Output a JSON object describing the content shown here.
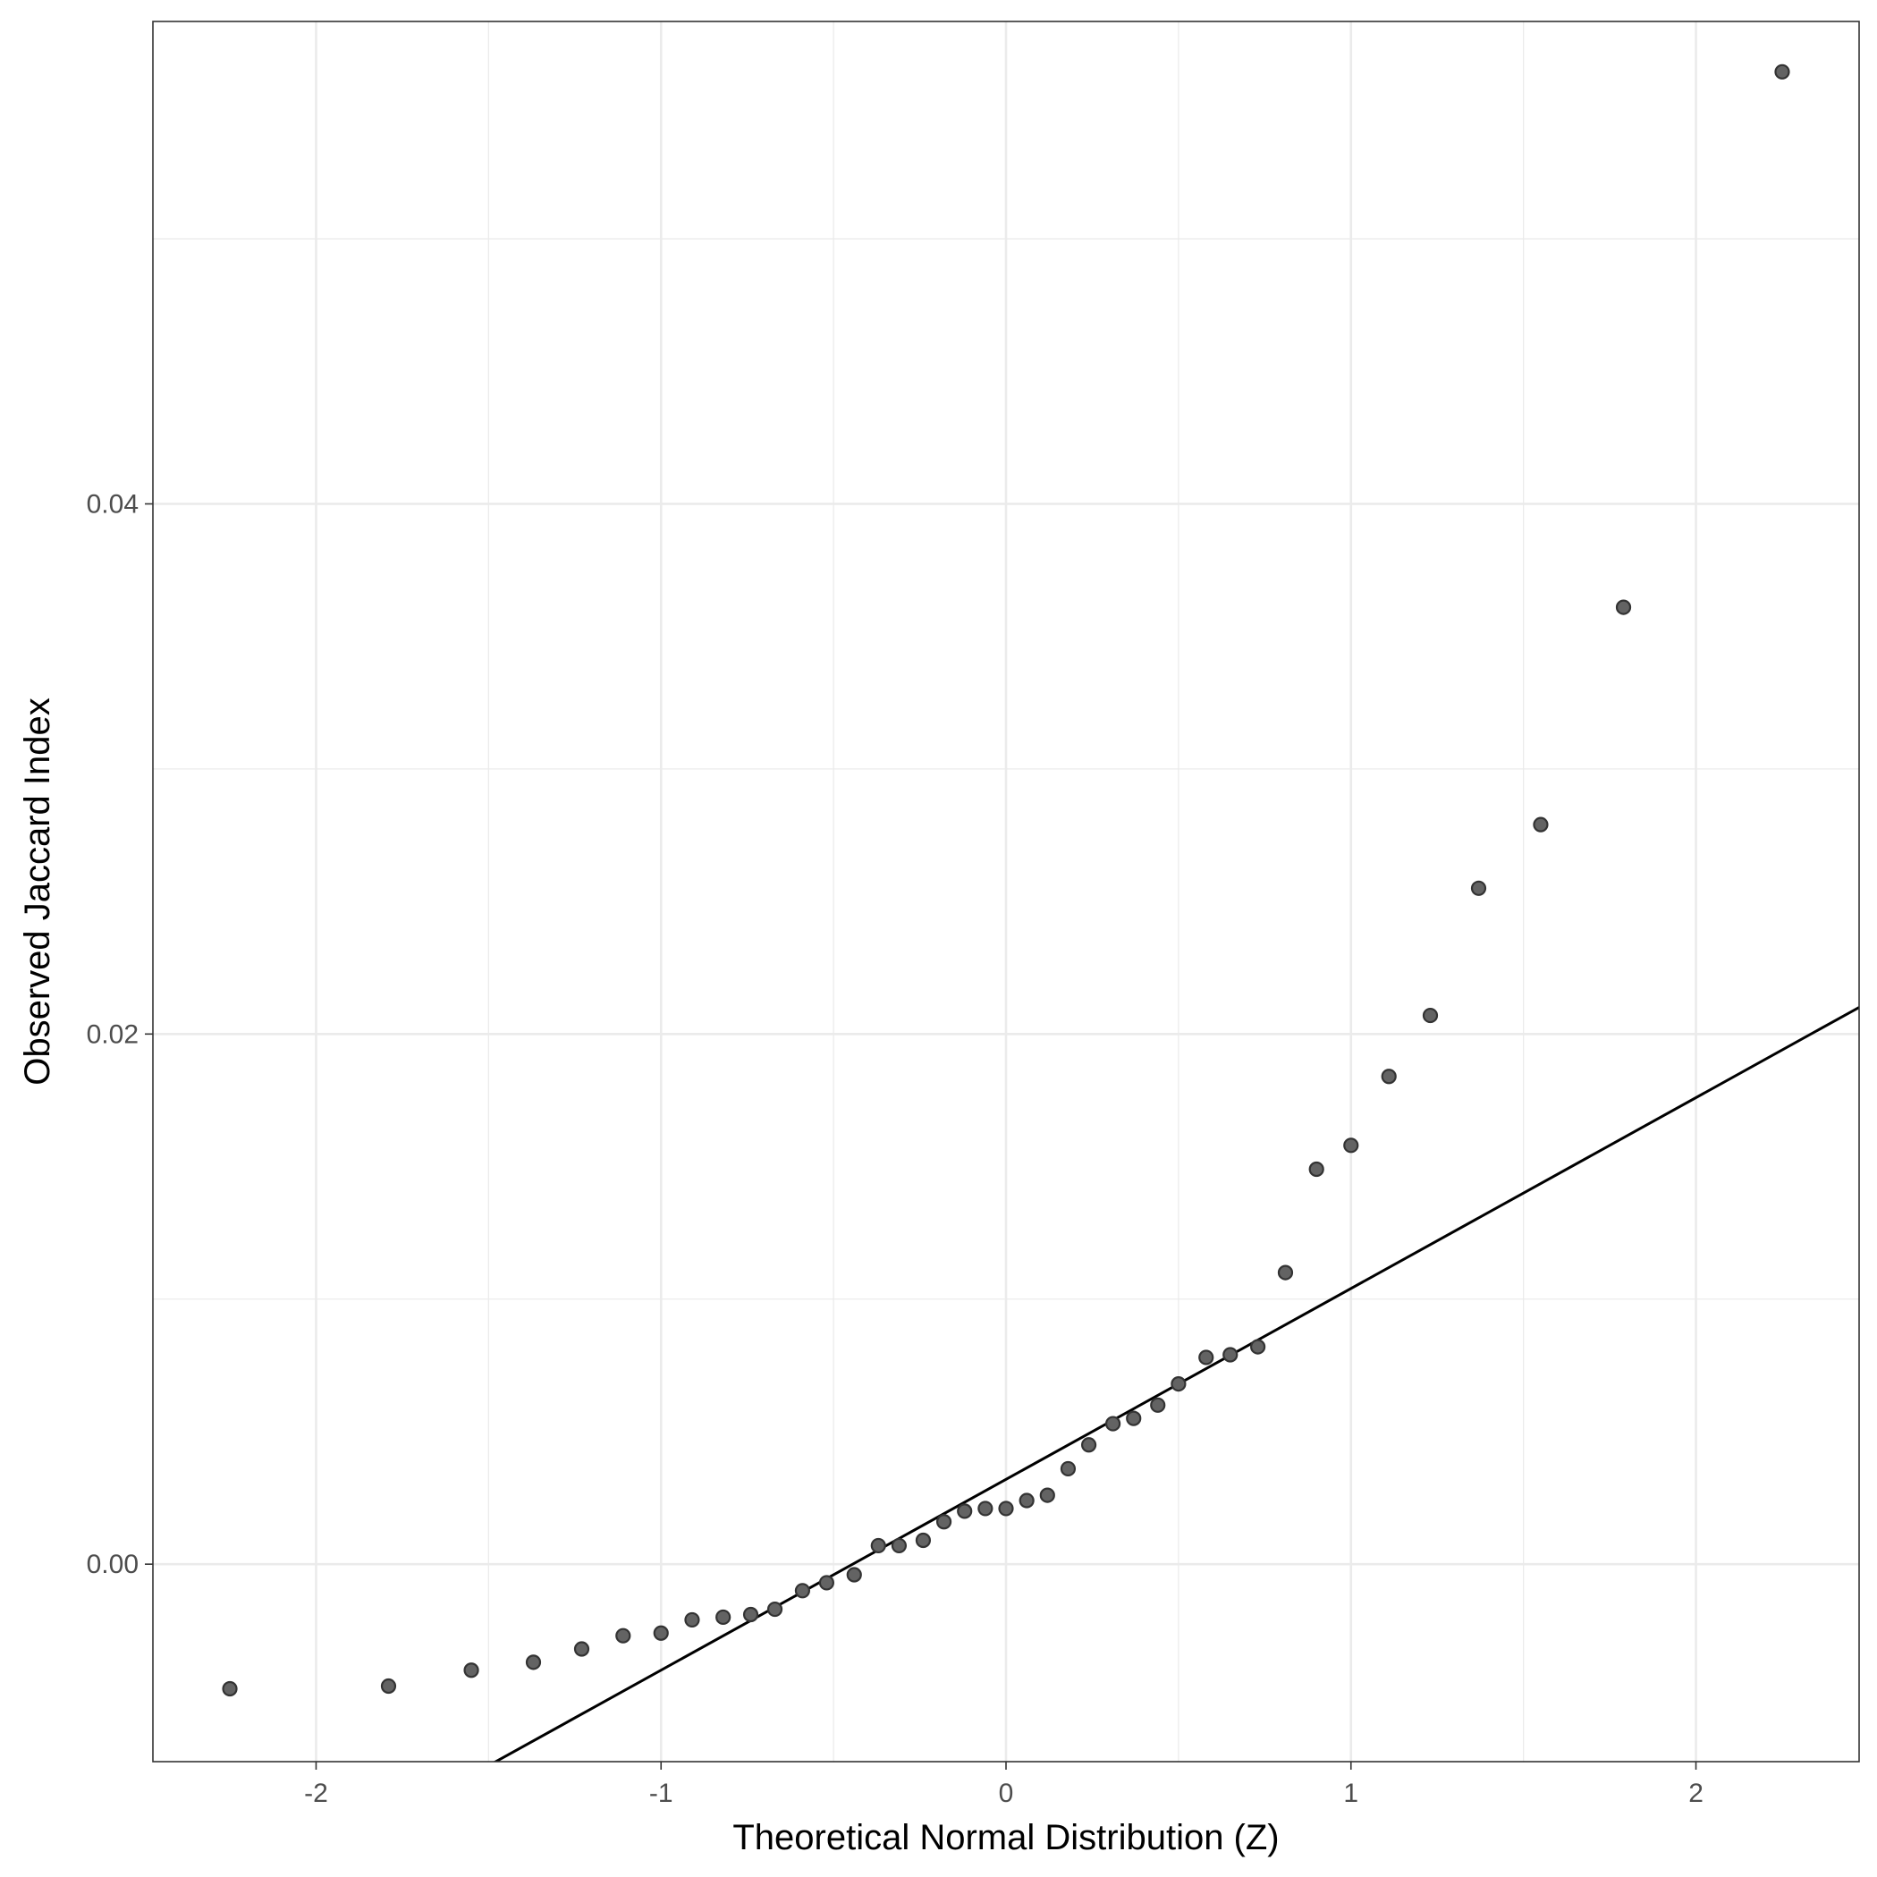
{
  "chart_data": {
    "type": "scatter",
    "title": "",
    "xlabel": "Theoretical Normal Distribution (Z)",
    "ylabel": "Observed Jaccard Index",
    "xlim": [
      -2.473,
      2.473
    ],
    "ylim": [
      -0.00745,
      0.0582
    ],
    "x_ticks": [
      -2,
      -1,
      0,
      1,
      2
    ],
    "x_tick_labels": [
      "-2",
      "-1",
      "0",
      "1",
      "2"
    ],
    "x_minor_ticks": [
      -1.5,
      -0.5,
      0.5,
      1.5
    ],
    "y_ticks": [
      0.0,
      0.02,
      0.04
    ],
    "y_tick_labels": [
      "0.00",
      "0.02",
      "0.04"
    ],
    "y_minor_ticks": [
      0.01,
      0.03,
      0.05
    ],
    "grid": true,
    "legend": "none",
    "series": [
      {
        "point_color": "#636363",
        "points": [
          [
            -2.25,
            -0.0047
          ],
          [
            -1.79,
            -0.0046
          ],
          [
            -1.55,
            -0.004
          ],
          [
            -1.37,
            -0.0037
          ],
          [
            -1.23,
            -0.0032
          ],
          [
            -1.11,
            -0.0027
          ],
          [
            -1.0,
            -0.0026
          ],
          [
            -0.91,
            -0.0021
          ],
          [
            -0.82,
            -0.002
          ],
          [
            -0.74,
            -0.0019
          ],
          [
            -0.67,
            -0.0017
          ],
          [
            -0.59,
            -0.001
          ],
          [
            -0.52,
            -0.0007
          ],
          [
            -0.44,
            -0.0004
          ],
          [
            -0.37,
            0.0007
          ],
          [
            -0.31,
            0.0007
          ],
          [
            -0.24,
            0.0009
          ],
          [
            -0.18,
            0.0016
          ],
          [
            -0.12,
            0.002
          ],
          [
            -0.06,
            0.0021
          ],
          [
            0.0,
            0.0021
          ],
          [
            0.06,
            0.0024
          ],
          [
            0.12,
            0.0026
          ],
          [
            0.18,
            0.0036
          ],
          [
            0.24,
            0.0045
          ],
          [
            0.31,
            0.0053
          ],
          [
            0.37,
            0.0055
          ],
          [
            0.44,
            0.006
          ],
          [
            0.5,
            0.0068
          ],
          [
            0.58,
            0.0078
          ],
          [
            0.65,
            0.0079
          ],
          [
            0.73,
            0.0082
          ],
          [
            0.81,
            0.011
          ],
          [
            0.9,
            0.0149
          ],
          [
            1.0,
            0.0158
          ],
          [
            1.11,
            0.0184
          ],
          [
            1.23,
            0.0207
          ],
          [
            1.37,
            0.0255
          ],
          [
            1.55,
            0.0279
          ],
          [
            1.79,
            0.0361
          ],
          [
            2.25,
            0.0563
          ]
        ]
      }
    ],
    "reference_line": {
      "intercept": 0.0032,
      "slope": 0.0072,
      "color": "#000000"
    }
  }
}
